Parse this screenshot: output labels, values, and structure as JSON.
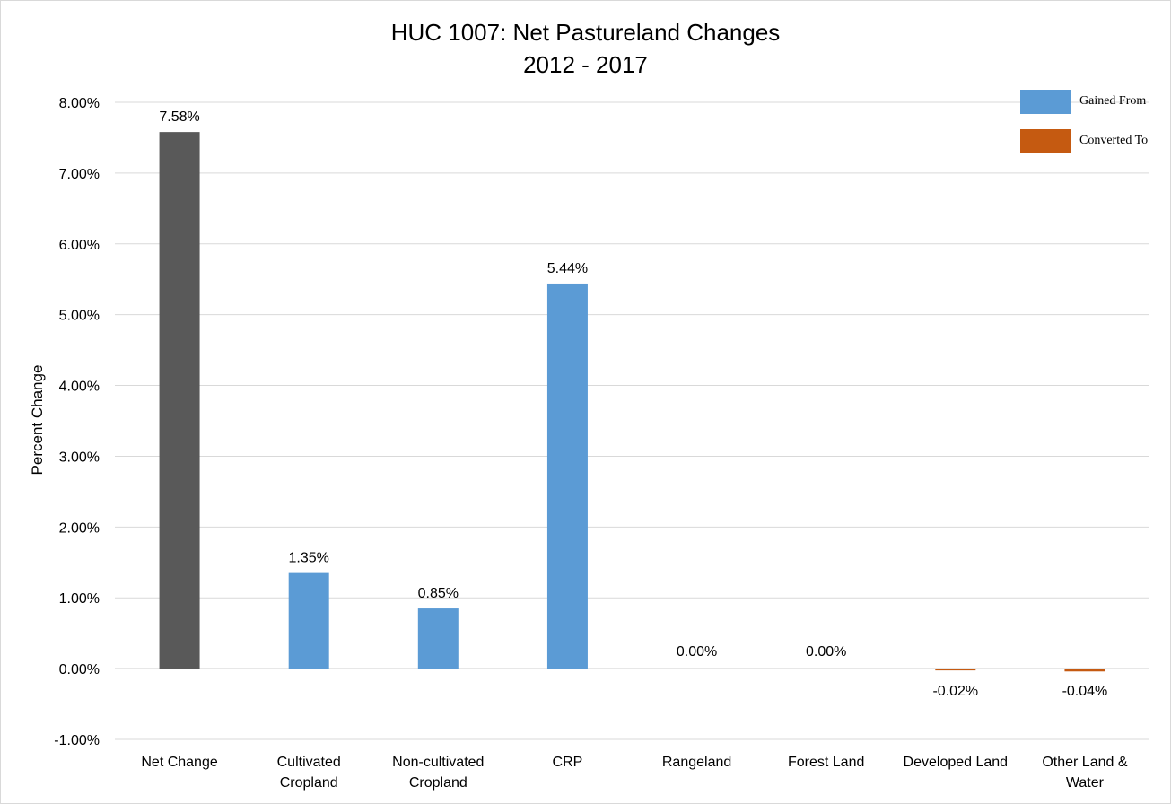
{
  "chart_data": {
    "type": "bar",
    "title": "HUC 1007: Net Pastureland Changes",
    "subtitle": "2012 - 2017",
    "xlabel": "",
    "ylabel": "Percent Change",
    "ylim": [
      -1.0,
      8.0
    ],
    "yticks": [
      "-1.00%",
      "0.00%",
      "1.00%",
      "2.00%",
      "3.00%",
      "4.00%",
      "5.00%",
      "6.00%",
      "7.00%",
      "8.00%"
    ],
    "grid": true,
    "legend_position": "top-right",
    "categories": [
      [
        "Net Change"
      ],
      [
        "Cultivated",
        "Cropland"
      ],
      [
        "Non-cultivated",
        "Cropland"
      ],
      [
        "CRP"
      ],
      [
        "Rangeland"
      ],
      [
        "Forest Land"
      ],
      [
        "Developed Land"
      ],
      [
        "Other Land &",
        "Water"
      ]
    ],
    "values": [
      7.58,
      1.35,
      0.85,
      5.44,
      0.0,
      0.0,
      -0.02,
      -0.04
    ],
    "data_labels": [
      "7.58%",
      "1.35%",
      "0.85%",
      "5.44%",
      "0.00%",
      "0.00%",
      "-0.02%",
      "-0.04%"
    ],
    "bar_colors": [
      "#595959",
      "#5b9bd5",
      "#5b9bd5",
      "#5b9bd5",
      "#5b9bd5",
      "#5b9bd5",
      "#c55a11",
      "#c55a11"
    ],
    "legend": [
      {
        "label": "Gained From",
        "color": "#5b9bd5"
      },
      {
        "label": "Converted To",
        "color": "#c55a11"
      }
    ]
  }
}
